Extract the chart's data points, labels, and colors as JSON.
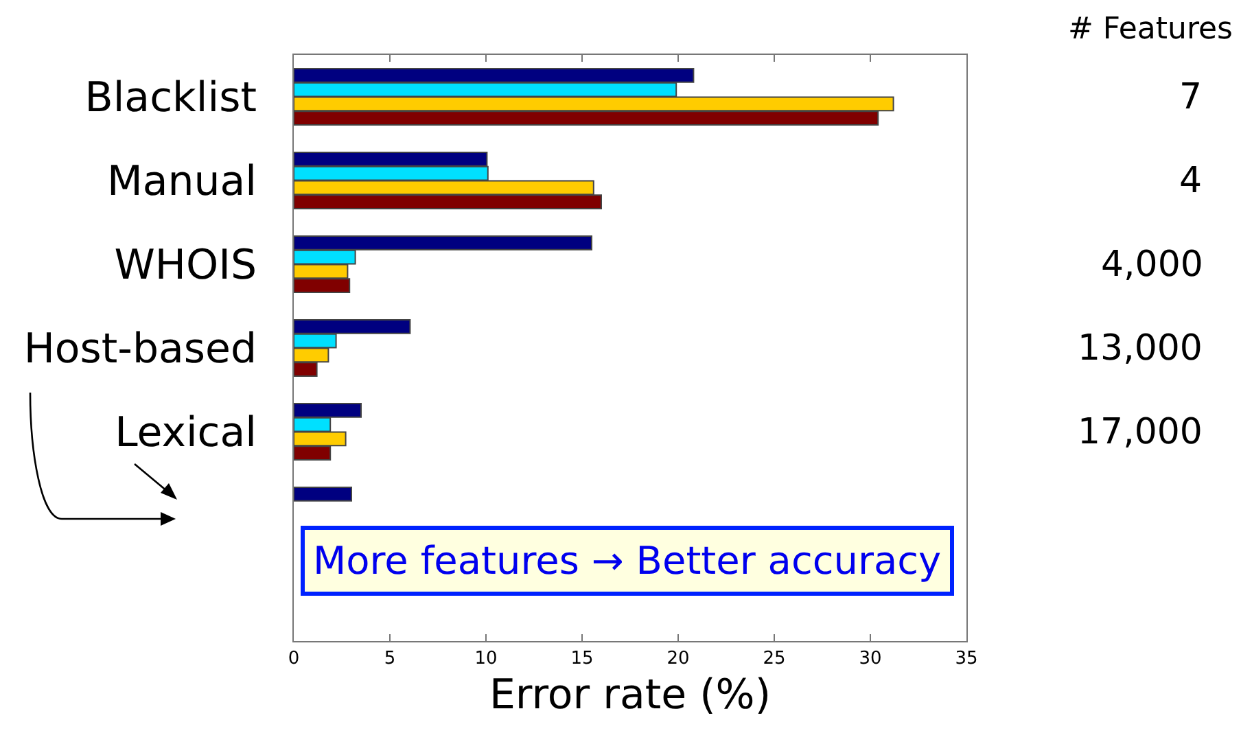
{
  "chart_data": {
    "type": "bar",
    "orientation": "horizontal",
    "xlabel": "Error rate (%)",
    "categories": [
      "Blacklist",
      "Manual",
      "WHOIS",
      "Host-based",
      "Lexical",
      null,
      null
    ],
    "series": [
      {
        "color": "#000080",
        "values": [
          20.8,
          10.05,
          15.5,
          6.05,
          3.5,
          3.0,
          null
        ]
      },
      {
        "color": "#00e0ff",
        "values": [
          19.9,
          10.1,
          3.2,
          2.2,
          1.9,
          null,
          null
        ]
      },
      {
        "color": "#ffcc00",
        "values": [
          31.2,
          15.6,
          2.8,
          1.8,
          2.7,
          null,
          null
        ]
      },
      {
        "color": "#800000",
        "values": [
          30.4,
          16.0,
          2.9,
          1.2,
          1.9,
          null,
          null
        ]
      }
    ],
    "xlim": [
      0,
      35
    ],
    "xticks": [
      0,
      5,
      10,
      15,
      20,
      25,
      30,
      35
    ],
    "grid": false,
    "annotations": [
      "# Features",
      "7",
      "4",
      "4,000",
      "13,000",
      "17,000",
      "More features → Better accuracy"
    ]
  }
}
